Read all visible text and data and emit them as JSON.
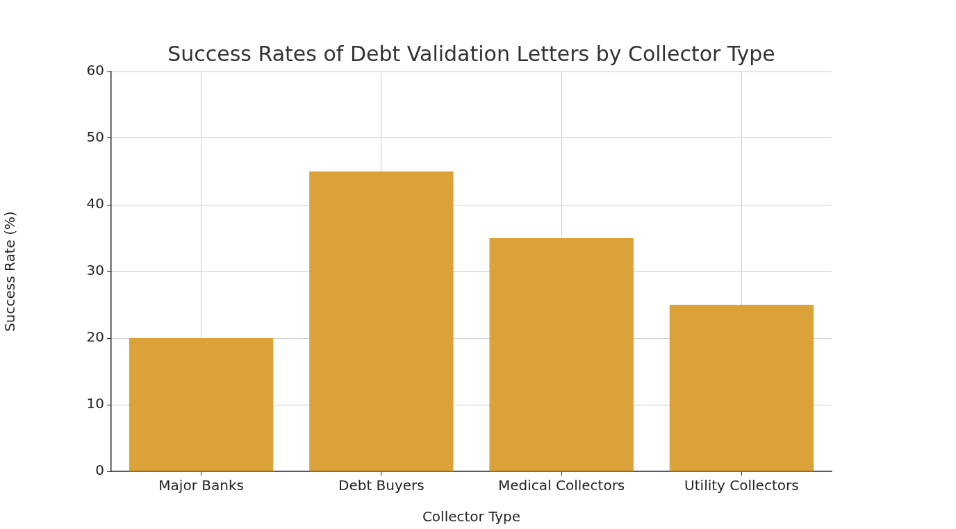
{
  "chart_data": {
    "type": "bar",
    "title": "Success Rates of Debt Validation Letters by Collector Type",
    "xlabel": "Collector Type",
    "ylabel": "Success Rate (%)",
    "categories": [
      "Major Banks",
      "Debt Buyers",
      "Medical Collectors",
      "Utility Collectors"
    ],
    "values": [
      20,
      45,
      35,
      25
    ],
    "color": "#dba239",
    "ylim": [
      0,
      60
    ],
    "yticks": [
      0,
      10,
      20,
      30,
      40,
      50,
      60
    ],
    "grid": true,
    "legend": false
  }
}
